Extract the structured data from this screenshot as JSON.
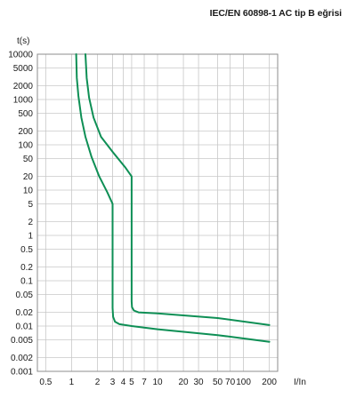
{
  "chart_data": {
    "type": "line",
    "title": "IEC/EN 60898-1 AC tip  B eğrisi",
    "xlabel": "I/In",
    "ylabel": "t(s)",
    "x_scale": "log",
    "y_scale": "log",
    "xlim": [
      0.4,
      250
    ],
    "ylim": [
      0.001,
      10000
    ],
    "grid": true,
    "line_color": "#0e8f55",
    "x_ticks": [
      {
        "value": 0.5,
        "label": "0.5"
      },
      {
        "value": 1,
        "label": "1"
      },
      {
        "value": 2,
        "label": "2"
      },
      {
        "value": 3,
        "label": "3"
      },
      {
        "value": 4,
        "label": "4"
      },
      {
        "value": 5,
        "label": "5"
      },
      {
        "value": 7,
        "label": "7"
      },
      {
        "value": 10,
        "label": "10"
      },
      {
        "value": 20,
        "label": "20"
      },
      {
        "value": 30,
        "label": "30"
      },
      {
        "value": 50,
        "label": "50"
      },
      {
        "value": 70,
        "label": "70"
      },
      {
        "value": 100,
        "label": "100"
      },
      {
        "value": 200,
        "label": "200"
      }
    ],
    "y_ticks": [
      {
        "value": 10000,
        "label": "10000"
      },
      {
        "value": 5000,
        "label": "5000"
      },
      {
        "value": 2000,
        "label": "2000"
      },
      {
        "value": 1000,
        "label": "1000"
      },
      {
        "value": 500,
        "label": "500"
      },
      {
        "value": 200,
        "label": "200"
      },
      {
        "value": 100,
        "label": "100"
      },
      {
        "value": 50,
        "label": "50"
      },
      {
        "value": 20,
        "label": "20"
      },
      {
        "value": 10,
        "label": "10"
      },
      {
        "value": 5,
        "label": "5"
      },
      {
        "value": 2,
        "label": "2"
      },
      {
        "value": 1,
        "label": "1"
      },
      {
        "value": 0.5,
        "label": "0.5"
      },
      {
        "value": 0.2,
        "label": "0.2"
      },
      {
        "value": 0.1,
        "label": "0.1"
      },
      {
        "value": 0.05,
        "label": "0.05"
      },
      {
        "value": 0.02,
        "label": "0.02"
      },
      {
        "value": 0.01,
        "label": "0.01"
      },
      {
        "value": 0.005,
        "label": "0.005"
      },
      {
        "value": 0.002,
        "label": "0.002"
      },
      {
        "value": 0.001,
        "label": "0.001"
      }
    ],
    "series": [
      {
        "x": [
          1.13,
          1.15,
          1.2,
          1.3,
          1.45,
          1.7,
          2.1,
          2.6,
          3.0,
          3.0,
          3.0,
          3.04,
          3.2,
          3.6,
          5,
          10,
          50,
          200
        ],
        "y": [
          10000,
          3000,
          1200,
          400,
          150,
          55,
          20,
          9,
          5,
          0.5,
          0.025,
          0.016,
          0.0125,
          0.011,
          0.01,
          0.0085,
          0.0063,
          0.0045
        ]
      },
      {
        "x": [
          1.45,
          1.5,
          1.6,
          1.8,
          2.2,
          3.0,
          4.2,
          5.0,
          5.0,
          5.0,
          5.05,
          5.3,
          6,
          10,
          50,
          200
        ],
        "y": [
          10000,
          3000,
          1100,
          400,
          150,
          70,
          32,
          20,
          1,
          0.035,
          0.026,
          0.022,
          0.02,
          0.019,
          0.015,
          0.0105
        ]
      }
    ]
  }
}
